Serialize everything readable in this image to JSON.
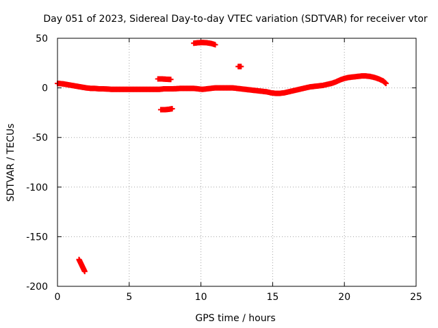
{
  "chart_data": {
    "type": "scatter",
    "title": "Day 051 of 2023, Sidereal Day-to-day VTEC variation (SDTVAR) for receiver vtor",
    "xlabel": "GPS time / hours",
    "ylabel": "SDTVAR / TECUs",
    "xlim": [
      0,
      25
    ],
    "ylim": [
      -200,
      50
    ],
    "xticks": [
      0,
      5,
      10,
      15,
      20,
      25
    ],
    "yticks": [
      50,
      0,
      -50,
      -100,
      -150,
      -200
    ],
    "grid": true,
    "marker": "plus",
    "colors": {
      "points": "#ff0000",
      "grid": "#a0a0a0",
      "axes": "#000000"
    },
    "series": [
      {
        "name": "main_trend",
        "points": [
          [
            0.0,
            4.5
          ],
          [
            0.2,
            4.3
          ],
          [
            0.4,
            4
          ],
          [
            0.6,
            3.5
          ],
          [
            0.8,
            3
          ],
          [
            1.0,
            2.5
          ],
          [
            1.2,
            2
          ],
          [
            1.4,
            1.5
          ],
          [
            1.6,
            1
          ],
          [
            1.8,
            0.5
          ],
          [
            2.0,
            0
          ],
          [
            2.3,
            -0.5
          ],
          [
            2.6,
            -0.5
          ],
          [
            2.9,
            -1
          ],
          [
            3.2,
            -1
          ],
          [
            3.5,
            -1.2
          ],
          [
            3.8,
            -1.5
          ],
          [
            4.1,
            -1.5
          ],
          [
            4.4,
            -1.5
          ],
          [
            4.7,
            -1.5
          ],
          [
            5.0,
            -1.5
          ],
          [
            5.3,
            -1.5
          ],
          [
            5.6,
            -1.5
          ],
          [
            5.9,
            -1.5
          ],
          [
            6.2,
            -1.5
          ],
          [
            6.5,
            -1.5
          ],
          [
            6.8,
            -1.5
          ],
          [
            7.1,
            -1.5
          ],
          [
            7.4,
            -1
          ],
          [
            7.7,
            -1
          ],
          [
            8.0,
            -1
          ],
          [
            8.3,
            -0.8
          ],
          [
            8.6,
            -0.5
          ],
          [
            8.9,
            -0.5
          ],
          [
            9.2,
            -0.5
          ],
          [
            9.5,
            -0.5
          ],
          [
            9.8,
            -1
          ],
          [
            10.1,
            -1.5
          ],
          [
            10.4,
            -1
          ],
          [
            10.7,
            -0.5
          ],
          [
            11.0,
            0
          ],
          [
            11.3,
            0
          ],
          [
            11.6,
            0
          ],
          [
            11.9,
            0
          ],
          [
            12.2,
            0
          ],
          [
            12.5,
            -0.5
          ],
          [
            12.8,
            -1
          ],
          [
            13.1,
            -1.5
          ],
          [
            13.4,
            -2
          ],
          [
            13.7,
            -2.5
          ],
          [
            14.0,
            -3
          ],
          [
            14.3,
            -3.5
          ],
          [
            14.6,
            -4
          ],
          [
            14.9,
            -5
          ],
          [
            15.2,
            -5.5
          ],
          [
            15.5,
            -5.5
          ],
          [
            15.8,
            -5
          ],
          [
            16.1,
            -4
          ],
          [
            16.4,
            -3
          ],
          [
            16.7,
            -2
          ],
          [
            17.0,
            -1
          ],
          [
            17.3,
            0
          ],
          [
            17.6,
            1
          ],
          [
            17.9,
            1.5
          ],
          [
            18.2,
            2
          ],
          [
            18.5,
            2.5
          ],
          [
            18.8,
            3.5
          ],
          [
            19.1,
            4.5
          ],
          [
            19.4,
            6
          ],
          [
            19.7,
            8
          ],
          [
            20.0,
            9.5
          ],
          [
            20.3,
            10.5
          ],
          [
            20.6,
            11
          ],
          [
            20.9,
            11.5
          ],
          [
            21.2,
            12
          ],
          [
            21.5,
            12
          ],
          [
            21.8,
            11.5
          ],
          [
            22.1,
            10.5
          ],
          [
            22.4,
            9
          ],
          [
            22.7,
            7
          ],
          [
            22.9,
            4.5
          ]
        ]
      },
      {
        "name": "upper_arc",
        "points": [
          [
            9.5,
            45
          ],
          [
            9.8,
            45.5
          ],
          [
            10.1,
            45.7
          ],
          [
            10.4,
            45.5
          ],
          [
            10.7,
            44.8
          ],
          [
            11.0,
            43.5
          ]
        ]
      },
      {
        "name": "short_segment_high",
        "points": [
          [
            7.0,
            9
          ],
          [
            7.3,
            9
          ],
          [
            7.6,
            8.7
          ],
          [
            7.9,
            8.5
          ]
        ]
      },
      {
        "name": "short_segment_low",
        "points": [
          [
            7.2,
            -22
          ],
          [
            7.5,
            -22
          ],
          [
            7.8,
            -21.5
          ],
          [
            8.0,
            -21
          ]
        ]
      },
      {
        "name": "isolated_point",
        "points": [
          [
            12.6,
            21.5
          ],
          [
            12.8,
            21.5
          ]
        ]
      },
      {
        "name": "low_outliers",
        "points": [
          [
            1.5,
            -173
          ],
          [
            1.6,
            -176
          ],
          [
            1.7,
            -179
          ],
          [
            1.8,
            -182
          ],
          [
            1.9,
            -185
          ]
        ]
      }
    ]
  }
}
